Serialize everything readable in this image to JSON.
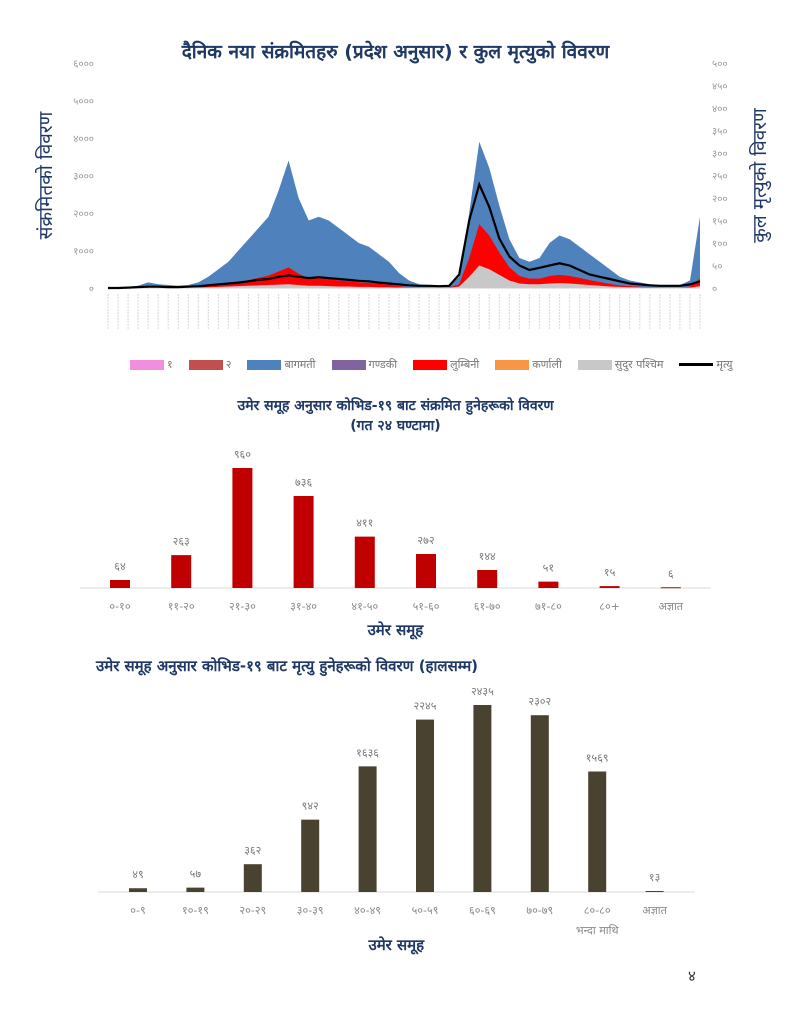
{
  "page_number": "४",
  "chart_data": [
    {
      "type": "area",
      "title": "दैनिक नया संक्रमितहरु (प्रदेश अनुसार) र कुल मृत्युको विवरण",
      "ylabel": "संक्रमितको विवरण",
      "y2label": "कुल मृत्युको विवरण",
      "ylim": [
        0,
        6000
      ],
      "y2lim": [
        0,
        500
      ],
      "yticks": [
        "०",
        "१०००",
        "२०००",
        "३०००",
        "४०००",
        "५०००",
        "६०००"
      ],
      "y2ticks": [
        "०",
        "५०",
        "१००",
        "१५०",
        "२००",
        "२५०",
        "३००",
        "३५०",
        "४००",
        "४५०",
        "५००"
      ],
      "legend": [
        "१",
        "२",
        "बागमती",
        "गण्डकी",
        "लुम्बिनी",
        "कर्णाली",
        "सुदुर पश्चिम",
        "मृत्यु"
      ],
      "colors": {
        "p1": "#f08ee0",
        "p2": "#c0504d",
        "bagmati": "#4f81bd",
        "gandaki": "#8064a2",
        "lumbini": "#ff0000",
        "karnali": "#f79646",
        "sudur": "#c8c8c8",
        "death": "#000000"
      },
      "total_cases": [
        0,
        10,
        30,
        60,
        150,
        100,
        80,
        60,
        80,
        150,
        300,
        500,
        700,
        1000,
        1300,
        1600,
        1900,
        2600,
        3400,
        2400,
        1800,
        1900,
        1800,
        1600,
        1400,
        1200,
        1100,
        900,
        700,
        400,
        200,
        100,
        80,
        60,
        70,
        300,
        2000,
        3900,
        3200,
        2200,
        1300,
        800,
        700,
        800,
        1200,
        1400,
        1300,
        1100,
        900,
        700,
        500,
        300,
        200,
        150,
        100,
        80,
        60,
        80,
        200,
        1900
      ],
      "lumbini_cases": [
        0,
        0,
        10,
        20,
        40,
        20,
        10,
        10,
        10,
        20,
        40,
        60,
        80,
        100,
        150,
        200,
        250,
        350,
        450,
        300,
        200,
        200,
        180,
        160,
        140,
        120,
        110,
        90,
        70,
        40,
        20,
        10,
        10,
        5,
        10,
        60,
        500,
        1100,
        900,
        600,
        350,
        200,
        150,
        150,
        200,
        220,
        200,
        170,
        130,
        100,
        70,
        40,
        30,
        20,
        15,
        10,
        10,
        10,
        30,
        200
      ],
      "sudur_cases": [
        0,
        0,
        0,
        0,
        10,
        5,
        5,
        5,
        5,
        10,
        20,
        30,
        40,
        50,
        60,
        70,
        80,
        90,
        100,
        80,
        60,
        60,
        50,
        40,
        40,
        30,
        30,
        20,
        20,
        10,
        5,
        5,
        5,
        5,
        5,
        40,
        300,
        600,
        500,
        350,
        200,
        120,
        100,
        100,
        120,
        130,
        120,
        100,
        80,
        60,
        40,
        30,
        20,
        15,
        10,
        10,
        5,
        5,
        10,
        50
      ],
      "deaths": [
        0,
        0,
        1,
        2,
        3,
        3,
        2,
        2,
        3,
        4,
        6,
        8,
        10,
        12,
        15,
        18,
        20,
        25,
        28,
        25,
        22,
        24,
        22,
        20,
        18,
        16,
        15,
        12,
        10,
        8,
        6,
        5,
        5,
        4,
        5,
        30,
        150,
        230,
        180,
        110,
        70,
        50,
        40,
        45,
        50,
        55,
        50,
        40,
        30,
        25,
        20,
        15,
        10,
        8,
        6,
        5,
        5,
        5,
        8,
        15
      ]
    },
    {
      "type": "bar",
      "title": "उमेर समूह अनुसार कोभिड-१९ बाट संक्रमित हुनेहरूको विवरण",
      "subtitle": "(गत २४ घण्टामा)",
      "xlabel": "उमेर समूह",
      "categories": [
        "०-१०",
        "११-२०",
        "२१-३०",
        "३१-४०",
        "४१-५०",
        "५१-६०",
        "६१-७०",
        "७१-८०",
        "८०+",
        "अज्ञात"
      ],
      "values": [
        64,
        263,
        960,
        736,
        411,
        272,
        144,
        51,
        15,
        6
      ],
      "labels": [
        "६४",
        "२६३",
        "९६०",
        "७३६",
        "४११",
        "२७२",
        "१४४",
        "५१",
        "१५",
        "६"
      ],
      "color": "#c00000",
      "ylim": [
        0,
        960
      ]
    },
    {
      "type": "bar",
      "title": "उमेर समूह अनुसार कोभिड-१९ बाट मृत्यु हुनेहरूको विवरण (हालसम्म)",
      "xlabel": "उमेर समूह",
      "categories": [
        "०-९",
        "१०-१९",
        "२०-२९",
        "३०-३९",
        "४०-४९",
        "५०-५९",
        "६०-६९",
        "७०-७९",
        "८०-८०",
        "अज्ञात"
      ],
      "category_sublabel": {
        "index": 8,
        "text": "भन्दा माथि"
      },
      "values": [
        49,
        57,
        362,
        942,
        1636,
        2245,
        2435,
        2302,
        1569,
        13
      ],
      "labels": [
        "४९",
        "५७",
        "३६२",
        "९४२",
        "१६३६",
        "२२४५",
        "२४३५",
        "२३०२",
        "१५६९",
        "१३"
      ],
      "color": "#4a4230",
      "ylim": [
        0,
        2435
      ]
    }
  ]
}
